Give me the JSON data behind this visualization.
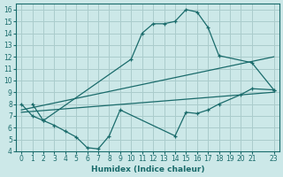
{
  "xlabel": "Humidex (Indice chaleur)",
  "bg_color": "#cce8e8",
  "grid_color": "#aacccc",
  "line_color": "#1a6b6b",
  "xlim": [
    -0.5,
    23.5
  ],
  "ylim": [
    4,
    16.5
  ],
  "xticks": [
    0,
    1,
    2,
    3,
    4,
    5,
    6,
    7,
    8,
    9,
    10,
    11,
    12,
    13,
    14,
    15,
    16,
    17,
    18,
    19,
    20,
    21,
    23
  ],
  "yticks": [
    4,
    5,
    6,
    7,
    8,
    9,
    10,
    11,
    12,
    13,
    14,
    15,
    16
  ],
  "line1_x": [
    1,
    2,
    10,
    11,
    12,
    13,
    14,
    15,
    16,
    17,
    18,
    21,
    23
  ],
  "line1_y": [
    8.0,
    6.6,
    11.8,
    14.0,
    14.8,
    14.8,
    15.0,
    16.0,
    15.8,
    14.5,
    12.1,
    11.5,
    9.2
  ],
  "line2_x": [
    0,
    1,
    2,
    3,
    4,
    5,
    6,
    7,
    8,
    9,
    14,
    15,
    16,
    17,
    18,
    20,
    21,
    23
  ],
  "line2_y": [
    8.0,
    7.0,
    6.6,
    6.2,
    5.7,
    5.2,
    4.3,
    4.2,
    5.3,
    7.5,
    5.3,
    7.3,
    7.2,
    7.5,
    8.0,
    8.8,
    9.3,
    9.2
  ],
  "line3_x": [
    0,
    23
  ],
  "line3_y": [
    7.5,
    12.0
  ],
  "line4_x": [
    0,
    23
  ],
  "line4_y": [
    7.3,
    9.0
  ],
  "xlabel_fontsize": 6.5,
  "tick_fontsize": 5.5
}
